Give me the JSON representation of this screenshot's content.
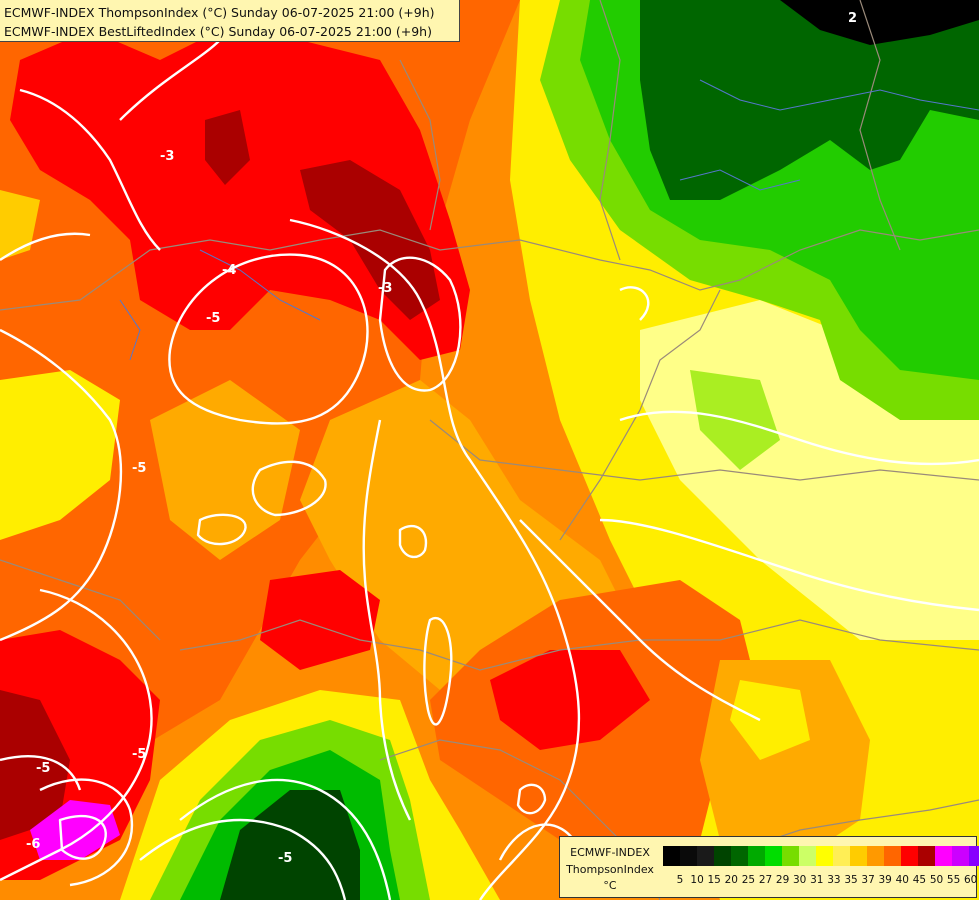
{
  "header": {
    "line1": "ECMWF-INDEX ThompsonIndex (°C) Sunday 06-07-2025 21:00 (+9h)",
    "line2": "ECMWF-INDEX BestLiftedIndex (°C) Sunday 06-07-2025 21:00 (+9h)"
  },
  "map_labels": {
    "a": "-3",
    "b": "-4",
    "c": "-5",
    "d": "-3",
    "e": "-5",
    "f": "-5",
    "g": "-5",
    "h": "-6",
    "i": "-5",
    "j": "2"
  },
  "legend": {
    "model": "ECMWF-INDEX",
    "variable": "ThompsonIndex",
    "unit": "°C",
    "colors": [
      "#000000",
      "#0a0a0a",
      "#1a1a1a",
      "#004400",
      "#006600",
      "#00aa00",
      "#00dd00",
      "#77dd00",
      "#ccff66",
      "#ffff00",
      "#ffee55",
      "#ffcc00",
      "#ff9900",
      "#ff6600",
      "#ff0000",
      "#aa0000",
      "#ff00ff",
      "#cc00ff",
      "#8800ff",
      "#4400ff",
      "#0000ff"
    ],
    "ticks": [
      "5",
      "10",
      "15",
      "20",
      "25",
      "27",
      "29",
      "30",
      "31",
      "33",
      "35",
      "37",
      "39",
      "40",
      "45",
      "50",
      "55",
      "60"
    ]
  }
}
